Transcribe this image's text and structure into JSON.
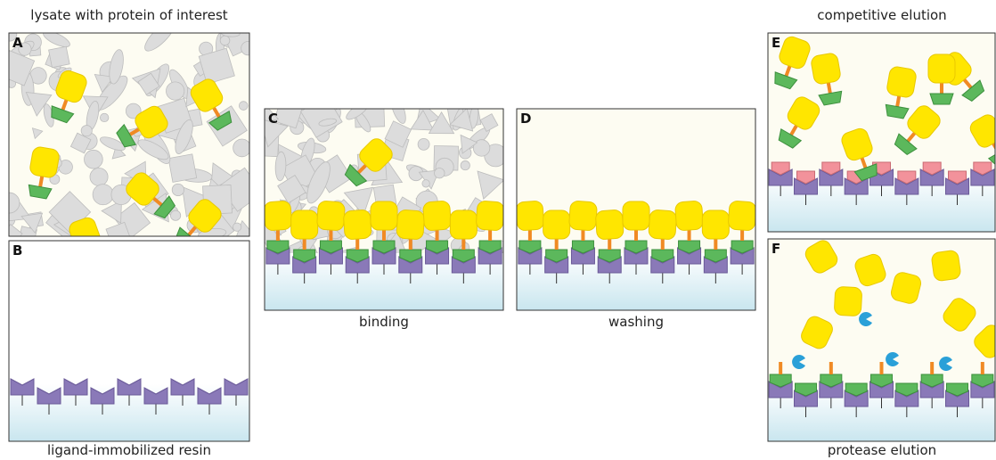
{
  "panels": [
    {
      "label": "A",
      "title": "lysate with protein of interest"
    },
    {
      "label": "B",
      "caption": "ligand-immobilized resin"
    },
    {
      "label": "C",
      "caption": "binding"
    },
    {
      "label": "D",
      "caption": "washing"
    },
    {
      "label": "E",
      "title": "competitive elution"
    },
    {
      "label": "F",
      "caption": "protease elution"
    }
  ]
}
